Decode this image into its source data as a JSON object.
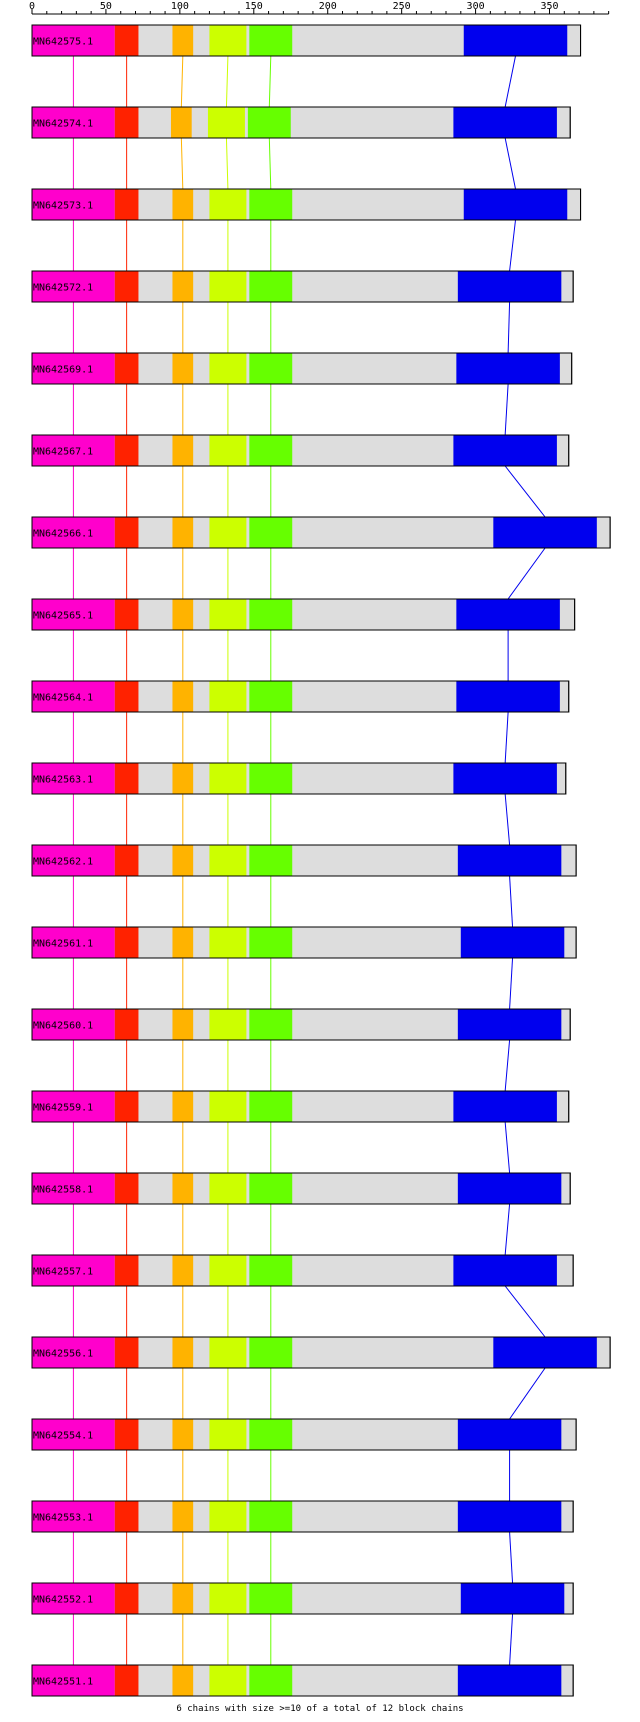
{
  "axis": {
    "min": 0,
    "max": 390,
    "ticks": [
      0,
      50,
      100,
      150,
      200,
      250,
      300,
      350
    ],
    "minor_step": 10
  },
  "colors": {
    "magenta": "#ff00cc",
    "red": "#ff2200",
    "orange": "#ffb300",
    "yellow_green": "#ccff00",
    "green": "#66ff00",
    "blue": "#0000ee",
    "gray": "#dddddd"
  },
  "block_colors": [
    "magenta",
    "red",
    "orange",
    "yellow_green",
    "green",
    "blue"
  ],
  "sequences": [
    {
      "id": "MN642575.1",
      "length": 371,
      "blocks": [
        [
          0,
          56
        ],
        [
          56,
          72
        ],
        [
          95,
          109
        ],
        [
          120,
          145
        ],
        [
          147,
          176
        ],
        [
          292,
          362
        ]
      ]
    },
    {
      "id": "MN642574.1",
      "length": 364,
      "blocks": [
        [
          0,
          56
        ],
        [
          56,
          72
        ],
        [
          94,
          108
        ],
        [
          119,
          144
        ],
        [
          146,
          175
        ],
        [
          285,
          355
        ]
      ]
    },
    {
      "id": "MN642573.1",
      "length": 371,
      "blocks": [
        [
          0,
          56
        ],
        [
          56,
          72
        ],
        [
          95,
          109
        ],
        [
          120,
          145
        ],
        [
          147,
          176
        ],
        [
          292,
          362
        ]
      ]
    },
    {
      "id": "MN642572.1",
      "length": 366,
      "blocks": [
        [
          0,
          56
        ],
        [
          56,
          72
        ],
        [
          95,
          109
        ],
        [
          120,
          145
        ],
        [
          147,
          176
        ],
        [
          288,
          358
        ]
      ]
    },
    {
      "id": "MN642569.1",
      "length": 365,
      "blocks": [
        [
          0,
          56
        ],
        [
          56,
          72
        ],
        [
          95,
          109
        ],
        [
          120,
          145
        ],
        [
          147,
          176
        ],
        [
          287,
          357
        ]
      ]
    },
    {
      "id": "MN642567.1",
      "length": 363,
      "blocks": [
        [
          0,
          56
        ],
        [
          56,
          72
        ],
        [
          95,
          109
        ],
        [
          120,
          145
        ],
        [
          147,
          176
        ],
        [
          285,
          355
        ]
      ]
    },
    {
      "id": "MN642566.1",
      "length": 391,
      "blocks": [
        [
          0,
          56
        ],
        [
          56,
          72
        ],
        [
          95,
          109
        ],
        [
          120,
          145
        ],
        [
          147,
          176
        ],
        [
          312,
          382
        ]
      ]
    },
    {
      "id": "MN642565.1",
      "length": 367,
      "blocks": [
        [
          0,
          56
        ],
        [
          56,
          72
        ],
        [
          95,
          109
        ],
        [
          120,
          145
        ],
        [
          147,
          176
        ],
        [
          287,
          357
        ]
      ]
    },
    {
      "id": "MN642564.1",
      "length": 363,
      "blocks": [
        [
          0,
          56
        ],
        [
          56,
          72
        ],
        [
          95,
          109
        ],
        [
          120,
          145
        ],
        [
          147,
          176
        ],
        [
          287,
          357
        ]
      ]
    },
    {
      "id": "MN642563.1",
      "length": 361,
      "blocks": [
        [
          0,
          56
        ],
        [
          56,
          72
        ],
        [
          95,
          109
        ],
        [
          120,
          145
        ],
        [
          147,
          176
        ],
        [
          285,
          355
        ]
      ]
    },
    {
      "id": "MN642562.1",
      "length": 368,
      "blocks": [
        [
          0,
          56
        ],
        [
          56,
          72
        ],
        [
          95,
          109
        ],
        [
          120,
          145
        ],
        [
          147,
          176
        ],
        [
          288,
          358
        ]
      ]
    },
    {
      "id": "MN642561.1",
      "length": 368,
      "blocks": [
        [
          0,
          56
        ],
        [
          56,
          72
        ],
        [
          95,
          109
        ],
        [
          120,
          145
        ],
        [
          147,
          176
        ],
        [
          290,
          360
        ]
      ]
    },
    {
      "id": "MN642560.1",
      "length": 364,
      "blocks": [
        [
          0,
          56
        ],
        [
          56,
          72
        ],
        [
          95,
          109
        ],
        [
          120,
          145
        ],
        [
          147,
          176
        ],
        [
          288,
          358
        ]
      ]
    },
    {
      "id": "MN642559.1",
      "length": 363,
      "blocks": [
        [
          0,
          56
        ],
        [
          56,
          72
        ],
        [
          95,
          109
        ],
        [
          120,
          145
        ],
        [
          147,
          176
        ],
        [
          285,
          355
        ]
      ]
    },
    {
      "id": "MN642558.1",
      "length": 364,
      "blocks": [
        [
          0,
          56
        ],
        [
          56,
          72
        ],
        [
          95,
          109
        ],
        [
          120,
          145
        ],
        [
          147,
          176
        ],
        [
          288,
          358
        ]
      ]
    },
    {
      "id": "MN642557.1",
      "length": 366,
      "blocks": [
        [
          0,
          56
        ],
        [
          56,
          72
        ],
        [
          95,
          109
        ],
        [
          120,
          145
        ],
        [
          147,
          176
        ],
        [
          285,
          355
        ]
      ]
    },
    {
      "id": "MN642556.1",
      "length": 391,
      "blocks": [
        [
          0,
          56
        ],
        [
          56,
          72
        ],
        [
          95,
          109
        ],
        [
          120,
          145
        ],
        [
          147,
          176
        ],
        [
          312,
          382
        ]
      ]
    },
    {
      "id": "MN642554.1",
      "length": 368,
      "blocks": [
        [
          0,
          56
        ],
        [
          56,
          72
        ],
        [
          95,
          109
        ],
        [
          120,
          145
        ],
        [
          147,
          176
        ],
        [
          288,
          358
        ]
      ]
    },
    {
      "id": "MN642553.1",
      "length": 366,
      "blocks": [
        [
          0,
          56
        ],
        [
          56,
          72
        ],
        [
          95,
          109
        ],
        [
          120,
          145
        ],
        [
          147,
          176
        ],
        [
          288,
          358
        ]
      ]
    },
    {
      "id": "MN642552.1",
      "length": 366,
      "blocks": [
        [
          0,
          56
        ],
        [
          56,
          72
        ],
        [
          95,
          109
        ],
        [
          120,
          145
        ],
        [
          147,
          176
        ],
        [
          290,
          360
        ]
      ]
    },
    {
      "id": "MN642551.1",
      "length": 366,
      "blocks": [
        [
          0,
          56
        ],
        [
          56,
          72
        ],
        [
          95,
          109
        ],
        [
          120,
          145
        ],
        [
          147,
          176
        ],
        [
          288,
          358
        ]
      ]
    }
  ],
  "footer": "6 chains with size >=10 of a total of 12 block chains"
}
